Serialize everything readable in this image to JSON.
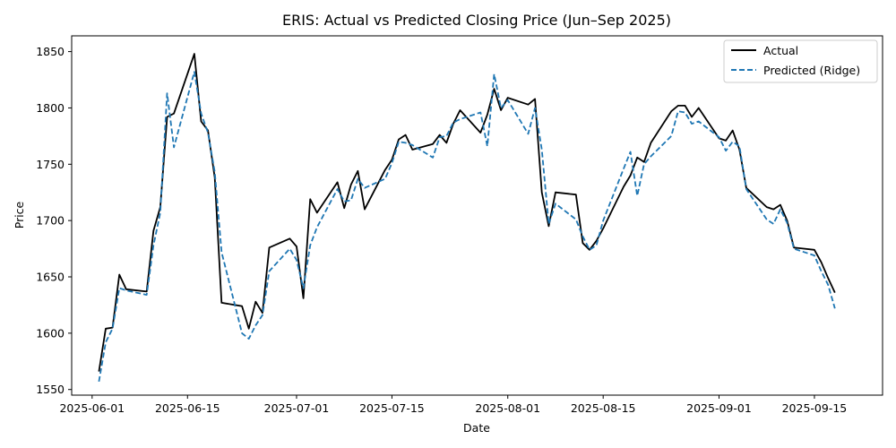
{
  "chart_data": {
    "type": "line",
    "title": "ERIS: Actual vs Predicted Closing Price (Jun–Sep 2025)",
    "xlabel": "Date",
    "ylabel": "Price",
    "ylim": [
      1545,
      1864
    ],
    "xlim": [
      "2025-05-29",
      "2025-09-25"
    ],
    "grid": false,
    "legend_position": "top-right",
    "x_ticks": [
      "2025-06-01",
      "2025-06-15",
      "2025-07-01",
      "2025-07-15",
      "2025-08-01",
      "2025-08-15",
      "2025-09-01",
      "2025-09-15"
    ],
    "y_ticks": [
      1550,
      1600,
      1650,
      1700,
      1750,
      1800,
      1850
    ],
    "series": [
      {
        "name": "Actual",
        "color": "#000000",
        "style": "solid",
        "points": [
          [
            "2025-06-02",
            1566
          ],
          [
            "2025-06-03",
            1604
          ],
          [
            "2025-06-04",
            1605
          ],
          [
            "2025-06-05",
            1652
          ],
          [
            "2025-06-06",
            1639
          ],
          [
            "2025-06-09",
            1637
          ],
          [
            "2025-06-10",
            1691
          ],
          [
            "2025-06-11",
            1712
          ],
          [
            "2025-06-12",
            1792
          ],
          [
            "2025-06-13",
            1795
          ],
          [
            "2025-06-16",
            1848
          ],
          [
            "2025-06-17",
            1788
          ],
          [
            "2025-06-18",
            1780
          ],
          [
            "2025-06-19",
            1738
          ],
          [
            "2025-06-20",
            1627
          ],
          [
            "2025-06-23",
            1624
          ],
          [
            "2025-06-24",
            1604
          ],
          [
            "2025-06-25",
            1628
          ],
          [
            "2025-06-26",
            1618
          ],
          [
            "2025-06-27",
            1676
          ],
          [
            "2025-06-30",
            1684
          ],
          [
            "2025-07-01",
            1677
          ],
          [
            "2025-07-02",
            1631
          ],
          [
            "2025-07-03",
            1719
          ],
          [
            "2025-07-04",
            1707
          ],
          [
            "2025-07-07",
            1734
          ],
          [
            "2025-07-08",
            1711
          ],
          [
            "2025-07-09",
            1732
          ],
          [
            "2025-07-10",
            1744
          ],
          [
            "2025-07-11",
            1710
          ],
          [
            "2025-07-14",
            1745
          ],
          [
            "2025-07-15",
            1754
          ],
          [
            "2025-07-16",
            1772
          ],
          [
            "2025-07-17",
            1776
          ],
          [
            "2025-07-18",
            1763
          ],
          [
            "2025-07-21",
            1768
          ],
          [
            "2025-07-22",
            1776
          ],
          [
            "2025-07-23",
            1769
          ],
          [
            "2025-07-24",
            1786
          ],
          [
            "2025-07-25",
            1798
          ],
          [
            "2025-07-28",
            1778
          ],
          [
            "2025-07-29",
            1794
          ],
          [
            "2025-07-30",
            1817
          ],
          [
            "2025-07-31",
            1798
          ],
          [
            "2025-08-01",
            1809
          ],
          [
            "2025-08-04",
            1803
          ],
          [
            "2025-08-05",
            1808
          ],
          [
            "2025-08-06",
            1725
          ],
          [
            "2025-08-07",
            1695
          ],
          [
            "2025-08-08",
            1725
          ],
          [
            "2025-08-11",
            1723
          ],
          [
            "2025-08-12",
            1680
          ],
          [
            "2025-08-13",
            1674
          ],
          [
            "2025-08-14",
            1682
          ],
          [
            "2025-08-15",
            1693
          ],
          [
            "2025-08-18",
            1730
          ],
          [
            "2025-08-19",
            1740
          ],
          [
            "2025-08-20",
            1756
          ],
          [
            "2025-08-21",
            1752
          ],
          [
            "2025-08-22",
            1769
          ],
          [
            "2025-08-25",
            1797
          ],
          [
            "2025-08-26",
            1802
          ],
          [
            "2025-08-27",
            1802
          ],
          [
            "2025-08-28",
            1792
          ],
          [
            "2025-08-29",
            1800
          ],
          [
            "2025-09-01",
            1773
          ],
          [
            "2025-09-02",
            1771
          ],
          [
            "2025-09-03",
            1780
          ],
          [
            "2025-09-04",
            1763
          ],
          [
            "2025-09-05",
            1729
          ],
          [
            "2025-09-08",
            1712
          ],
          [
            "2025-09-09",
            1710
          ],
          [
            "2025-09-10",
            1714
          ],
          [
            "2025-09-11",
            1700
          ],
          [
            "2025-09-12",
            1676
          ],
          [
            "2025-09-15",
            1674
          ],
          [
            "2025-09-16",
            1663
          ],
          [
            "2025-09-17",
            1649
          ],
          [
            "2025-09-18",
            1636
          ]
        ]
      },
      {
        "name": "Predicted (Ridge)",
        "color": "#1f77b4",
        "style": "dashed",
        "points": [
          [
            "2025-06-02",
            1557
          ],
          [
            "2025-06-03",
            1592
          ],
          [
            "2025-06-04",
            1604
          ],
          [
            "2025-06-05",
            1640
          ],
          [
            "2025-06-06",
            1638
          ],
          [
            "2025-06-09",
            1634
          ],
          [
            "2025-06-10",
            1678
          ],
          [
            "2025-06-11",
            1707
          ],
          [
            "2025-06-12",
            1813
          ],
          [
            "2025-06-13",
            1765
          ],
          [
            "2025-06-16",
            1832
          ],
          [
            "2025-06-17",
            1795
          ],
          [
            "2025-06-18",
            1778
          ],
          [
            "2025-06-19",
            1743
          ],
          [
            "2025-06-20",
            1672
          ],
          [
            "2025-06-23",
            1600
          ],
          [
            "2025-06-24",
            1595
          ],
          [
            "2025-06-25",
            1607
          ],
          [
            "2025-06-26",
            1616
          ],
          [
            "2025-06-27",
            1655
          ],
          [
            "2025-06-30",
            1675
          ],
          [
            "2025-07-01",
            1665
          ],
          [
            "2025-07-02",
            1640
          ],
          [
            "2025-07-03",
            1678
          ],
          [
            "2025-07-04",
            1694
          ],
          [
            "2025-07-07",
            1728
          ],
          [
            "2025-07-08",
            1717
          ],
          [
            "2025-07-09",
            1718
          ],
          [
            "2025-07-10",
            1737
          ],
          [
            "2025-07-11",
            1729
          ],
          [
            "2025-07-14",
            1737
          ],
          [
            "2025-07-15",
            1751
          ],
          [
            "2025-07-16",
            1770
          ],
          [
            "2025-07-17",
            1769
          ],
          [
            "2025-07-18",
            1767
          ],
          [
            "2025-07-21",
            1756
          ],
          [
            "2025-07-22",
            1774
          ],
          [
            "2025-07-23",
            1775
          ],
          [
            "2025-07-24",
            1787
          ],
          [
            "2025-07-25",
            1790
          ],
          [
            "2025-07-28",
            1796
          ],
          [
            "2025-07-29",
            1766
          ],
          [
            "2025-07-30",
            1830
          ],
          [
            "2025-07-31",
            1800
          ],
          [
            "2025-08-01",
            1807
          ],
          [
            "2025-08-04",
            1777
          ],
          [
            "2025-08-05",
            1800
          ],
          [
            "2025-08-06",
            1763
          ],
          [
            "2025-08-07",
            1697
          ],
          [
            "2025-08-08",
            1715
          ],
          [
            "2025-08-11",
            1701
          ],
          [
            "2025-08-12",
            1686
          ],
          [
            "2025-08-13",
            1674
          ],
          [
            "2025-08-14",
            1678
          ],
          [
            "2025-08-15",
            1700
          ],
          [
            "2025-08-18",
            1746
          ],
          [
            "2025-08-19",
            1761
          ],
          [
            "2025-08-20",
            1722
          ],
          [
            "2025-08-21",
            1750
          ],
          [
            "2025-08-22",
            1757
          ],
          [
            "2025-08-25",
            1775
          ],
          [
            "2025-08-26",
            1797
          ],
          [
            "2025-08-27",
            1796
          ],
          [
            "2025-08-28",
            1786
          ],
          [
            "2025-08-29",
            1788
          ],
          [
            "2025-09-01",
            1774
          ],
          [
            "2025-09-02",
            1762
          ],
          [
            "2025-09-03",
            1770
          ],
          [
            "2025-09-04",
            1766
          ],
          [
            "2025-09-05",
            1728
          ],
          [
            "2025-09-08",
            1701
          ],
          [
            "2025-09-09",
            1697
          ],
          [
            "2025-09-10",
            1710
          ],
          [
            "2025-09-11",
            1698
          ],
          [
            "2025-09-12",
            1675
          ],
          [
            "2025-09-15",
            1669
          ],
          [
            "2025-09-16",
            1655
          ],
          [
            "2025-09-17",
            1643
          ],
          [
            "2025-09-18",
            1622
          ]
        ]
      }
    ]
  }
}
